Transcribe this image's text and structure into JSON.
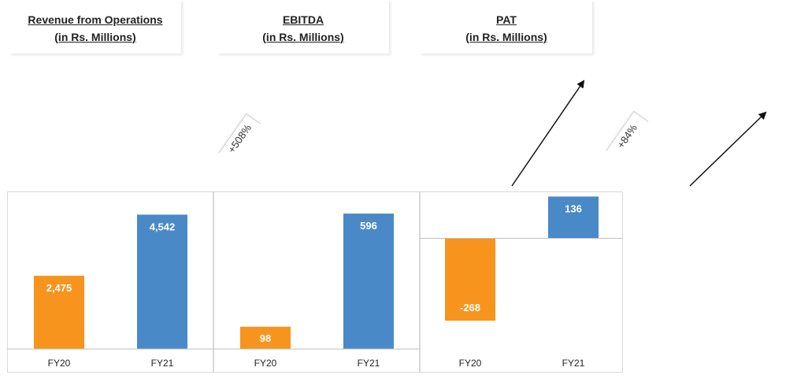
{
  "titles": [
    {
      "line1": "Revenue from Operations",
      "line2": "(in Rs. Millions)"
    },
    {
      "line1": "EBITDA",
      "line2": "(in Rs. Millions)"
    },
    {
      "line1": "PAT",
      "line2": "(in Rs. Millions)"
    }
  ],
  "badges": {
    "ebitda_growth": "+508%",
    "pat_growth": "+84%"
  },
  "colors": {
    "fy20": "#f7941d",
    "fy21": "#4a89c8",
    "border": "#d9d9d9",
    "axis": "#bfbfbf"
  },
  "chart_data": [
    {
      "type": "bar",
      "title": "Revenue from Operations (in Rs. Millions)",
      "categories": [
        "FY20",
        "FY21"
      ],
      "values": [
        2475,
        4542
      ],
      "labels": [
        "2,475",
        "4,542"
      ],
      "ylim": [
        0,
        5300
      ],
      "grid": false
    },
    {
      "type": "bar",
      "title": "EBITDA (in Rs. Millions)",
      "categories": [
        "FY20",
        "FY21"
      ],
      "values": [
        98,
        596
      ],
      "labels": [
        "98",
        "596"
      ],
      "ylim": [
        0,
        690
      ],
      "grid": false
    },
    {
      "type": "bar",
      "title": "PAT (in Rs. Millions)",
      "categories": [
        "FY20",
        "FY21"
      ],
      "values": [
        -268,
        136
      ],
      "labels": [
        "-268",
        "136"
      ],
      "ylim": [
        -360,
        150
      ],
      "grid": false
    }
  ]
}
